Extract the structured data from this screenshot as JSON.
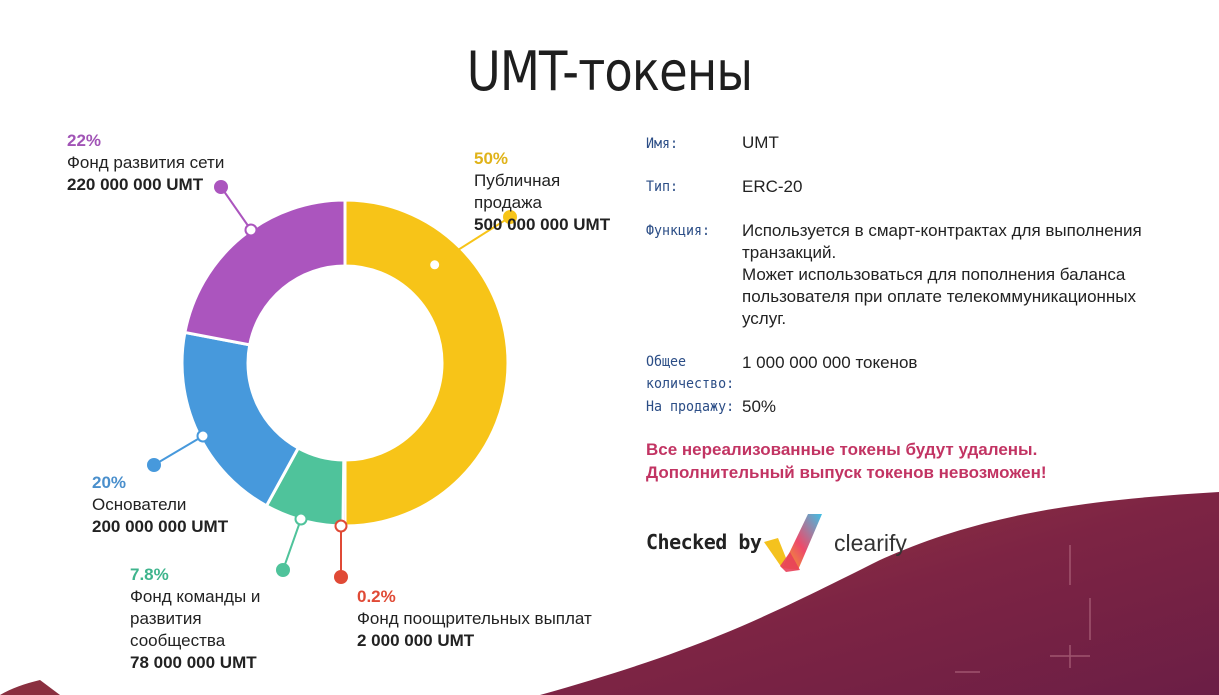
{
  "title": "UMT-токены",
  "colors": {
    "yellow": "#f7c418",
    "red": "#e04a36",
    "green": "#4fc39b",
    "blue": "#4799dc",
    "purple": "#ab55be",
    "accent": "#c23463",
    "wave": "#7a2446"
  },
  "chart_data": {
    "type": "pie",
    "variant": "donut",
    "series": [
      {
        "pct": "50%",
        "name_lines": [
          "Публичная",
          "продажа"
        ],
        "amount": "500 000 000 UMT",
        "value": 50,
        "color": "#f7c418"
      },
      {
        "pct": "0.2%",
        "name_lines": [
          "Фонд поощрительных выплат"
        ],
        "amount": "2 000 000 UMT",
        "value": 0.2,
        "color": "#e04a36"
      },
      {
        "pct": "7.8%",
        "name_lines": [
          "Фонд команды и",
          "развития",
          "сообщества"
        ],
        "amount": "78 000 000 UMT",
        "value": 7.8,
        "color": "#4fc39b"
      },
      {
        "pct": "20%",
        "name_lines": [
          "Основатели"
        ],
        "amount": "200 000 000 UMT",
        "value": 20,
        "color": "#4799dc"
      },
      {
        "pct": "22%",
        "name_lines": [
          "Фонд развития сети"
        ],
        "amount": "220 000 000 UMT",
        "value": 22,
        "color": "#ab55be"
      }
    ]
  },
  "info": {
    "name_key": "Имя:",
    "name_val": "UMT",
    "type_key": "Тип:",
    "type_val": "ERC-20",
    "func_key": "Функция:",
    "func_lines": [
      "Используется в смарт-контрактах для выполнения",
      "транзакций.",
      "Может использоваться для пополнения баланса",
      "пользователя при оплате телекоммуникационных",
      "услуг."
    ],
    "total_key_lines": [
      "Общее",
      "количество:"
    ],
    "total_val": "1 000 000 000 токенов",
    "sale_key": "На продажу:",
    "sale_val": "50%"
  },
  "warning": [
    "Все нереализованные токены будут удалены.",
    "Дополнительный выпуск токенов невозможен!"
  ],
  "checked_by": "Checked by",
  "brand": "clearify"
}
